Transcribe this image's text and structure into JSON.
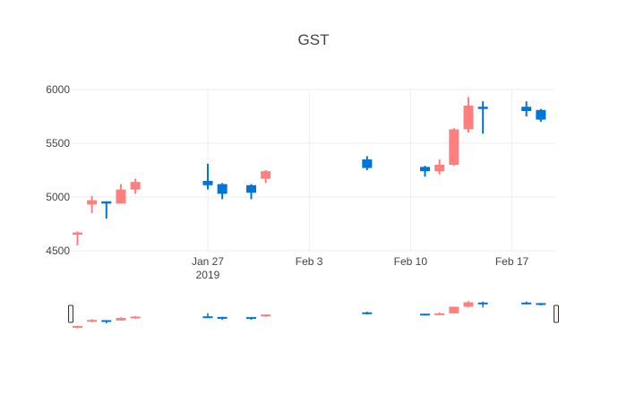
{
  "chart_data": {
    "type": "candlestick",
    "title": "GST",
    "xlabel": "",
    "ylabel": "",
    "ylim": [
      4500,
      6000
    ],
    "yticks": [
      4500,
      5000,
      5500,
      6000
    ],
    "xrange": [
      "2019-01-18",
      "2019-02-20"
    ],
    "xticks": [
      {
        "date": "2019-01-27",
        "label": "Jan 27",
        "sublabel": "2019"
      },
      {
        "date": "2019-02-03",
        "label": "Feb 3",
        "sublabel": ""
      },
      {
        "date": "2019-02-10",
        "label": "Feb 10",
        "sublabel": ""
      },
      {
        "date": "2019-02-17",
        "label": "Feb 17",
        "sublabel": ""
      }
    ],
    "colors": {
      "increasing": "#3D9970",
      "decreasing": "#FF4136",
      "up_candle": "#0074D9",
      "down_candle": "#FF7F7F"
    },
    "candles": [
      {
        "date": "2019-01-18",
        "open": 4670,
        "high": 4680,
        "low": 4550,
        "close": 4650
      },
      {
        "date": "2019-01-19",
        "open": 4970,
        "high": 5010,
        "low": 4850,
        "close": 4930
      },
      {
        "date": "2019-01-20",
        "open": 4950,
        "high": 4960,
        "low": 4800,
        "close": 4960
      },
      {
        "date": "2019-01-21",
        "open": 5070,
        "high": 5120,
        "low": 4940,
        "close": 4940
      },
      {
        "date": "2019-01-22",
        "open": 5140,
        "high": 5170,
        "low": 5030,
        "close": 5070
      },
      {
        "date": "2019-01-27",
        "open": 5110,
        "high": 5310,
        "low": 5070,
        "close": 5150
      },
      {
        "date": "2019-01-28",
        "open": 5030,
        "high": 5130,
        "low": 4980,
        "close": 5120
      },
      {
        "date": "2019-01-30",
        "open": 5040,
        "high": 5120,
        "low": 4980,
        "close": 5110
      },
      {
        "date": "2019-01-31",
        "open": 5240,
        "high": 5250,
        "low": 5130,
        "close": 5170
      },
      {
        "date": "2019-02-07",
        "open": 5270,
        "high": 5380,
        "low": 5250,
        "close": 5350
      },
      {
        "date": "2019-02-11",
        "open": 5240,
        "high": 5290,
        "low": 5190,
        "close": 5280
      },
      {
        "date": "2019-02-12",
        "open": 5300,
        "high": 5350,
        "low": 5210,
        "close": 5240
      },
      {
        "date": "2019-02-13",
        "open": 5630,
        "high": 5640,
        "low": 5290,
        "close": 5300
      },
      {
        "date": "2019-02-14",
        "open": 5850,
        "high": 5930,
        "low": 5600,
        "close": 5630
      },
      {
        "date": "2019-02-15",
        "open": 5830,
        "high": 5890,
        "low": 5590,
        "close": 5840
      },
      {
        "date": "2019-02-18",
        "open": 5800,
        "high": 5890,
        "low": 5750,
        "close": 5840
      },
      {
        "date": "2019-02-19",
        "open": 5720,
        "high": 5820,
        "low": 5700,
        "close": 5810
      }
    ]
  }
}
